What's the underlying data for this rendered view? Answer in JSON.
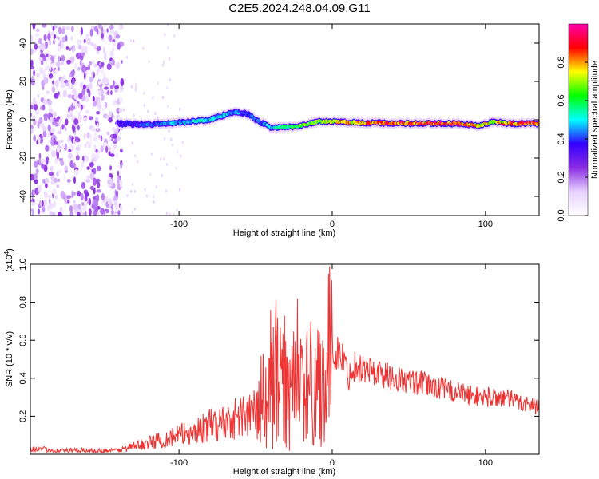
{
  "title": "C2E5.2024.248.04.09.G11",
  "colors": {
    "snr_line": "#ee3333",
    "background": "#ffffff",
    "axis": "#000000"
  },
  "chart_data": [
    {
      "type": "heatmap",
      "xlabel": "Height of straight line (km)",
      "ylabel": "Frequency (Hz)",
      "xlim": [
        -197,
        135
      ],
      "ylim": [
        -50,
        50
      ],
      "x_ticks": [
        -100,
        0,
        100
      ],
      "y_ticks": [
        -40,
        -20,
        0,
        20,
        40
      ],
      "colorbar": {
        "label": "Normalized spectral amplitude",
        "range": [
          0,
          1
        ],
        "ticks": [
          0.0,
          0.2,
          0.4,
          0.6,
          0.8
        ],
        "colormap": [
          "#ffffff",
          "#e8d2ff",
          "#8a2be2",
          "#3300ff",
          "#00ffff",
          "#00ff00",
          "#ffff00",
          "#ff0000",
          "#ff00aa"
        ]
      },
      "ridge": {
        "x": [
          -140,
          -120,
          -100,
          -80,
          -65,
          -55,
          -48,
          -40,
          -30,
          -20,
          -10,
          0,
          20,
          50,
          80,
          95,
          105,
          115,
          135
        ],
        "frequency_hz": [
          -2,
          -2.5,
          -1.5,
          0,
          4,
          3,
          -1,
          -4,
          -4,
          -3,
          -1,
          -1,
          -1.5,
          -2,
          -2,
          -3,
          -1,
          -2,
          -2
        ],
        "peak_amplitude": [
          0.35,
          0.45,
          0.5,
          0.55,
          0.5,
          0.45,
          0.45,
          0.55,
          0.6,
          0.7,
          0.75,
          0.8,
          0.9,
          0.95,
          0.95,
          0.85,
          0.8,
          0.9,
          0.95
        ]
      },
      "noise_region_x": [
        -197,
        -137
      ]
    },
    {
      "type": "line",
      "xlabel": "Height of straight line (km)",
      "ylabel": "SNR (10 * v/v)",
      "y_scale_label": "(x10",
      "y_scale_exponent": "4",
      "y_scale_suffix": ")",
      "xlim": [
        -197,
        135
      ],
      "ylim": [
        0,
        1.0
      ],
      "x_ticks": [
        -100,
        0,
        100
      ],
      "y_ticks": [
        0.2,
        0.4,
        0.6,
        0.8,
        1.0
      ],
      "series": [
        {
          "x": [
            -197,
            -180,
            -160,
            -140,
            -130,
            -120,
            -110,
            -100,
            -90,
            -80,
            -70,
            -60,
            -50,
            -45,
            -40,
            -35,
            -30,
            -25,
            -20,
            -15,
            -10,
            -5,
            0,
            5,
            8,
            10,
            15,
            20,
            30,
            40,
            50,
            60,
            70,
            80,
            90,
            100,
            110,
            120,
            135
          ],
          "y": [
            0.03,
            0.02,
            0.02,
            0.02,
            0.04,
            0.06,
            0.08,
            0.1,
            0.12,
            0.15,
            0.17,
            0.2,
            0.22,
            0.3,
            0.35,
            0.38,
            0.34,
            0.36,
            0.36,
            0.37,
            0.38,
            0.43,
            0.55,
            0.52,
            0.5,
            0.4,
            0.47,
            0.45,
            0.43,
            0.4,
            0.38,
            0.37,
            0.35,
            0.33,
            0.31,
            0.3,
            0.3,
            0.28,
            0.25
          ]
        }
      ]
    }
  ]
}
